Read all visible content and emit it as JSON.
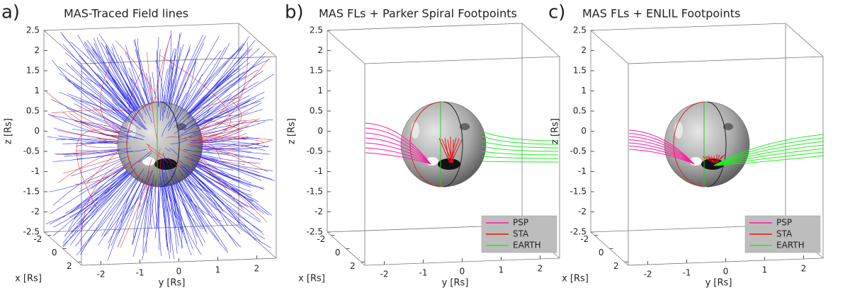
{
  "chart_data": [
    {
      "type": "field-lines",
      "panel_label": "a)",
      "title": "MAS-Traced Field lines",
      "zlabel": "z [Rs]",
      "xlabel": "x [Rs]",
      "ylabel": "y [Rs]",
      "xlim": [
        -2.5,
        2.5
      ],
      "ylim": [
        -2.5,
        2.5
      ],
      "zlim": [
        -2.5,
        2.5
      ],
      "xticks": [
        -2,
        0,
        2
      ],
      "yticks": [
        -2,
        -1,
        0,
        1,
        2
      ],
      "zticks": [
        2.5,
        2,
        1.5,
        1,
        0.5,
        0,
        -0.5,
        -1,
        -1.5,
        -2,
        -2.5
      ],
      "field_line_colors": [
        "#2424ee",
        "#ee2a2a"
      ]
    },
    {
      "type": "field-lines",
      "panel_label": "b)",
      "title": "MAS FLs + Parker Spiral Footpoints",
      "zlabel": "z [Rs]",
      "xlabel": "x [Rs]",
      "ylabel": "y [Rs]",
      "xlim": [
        -2.5,
        2.5
      ],
      "ylim": [
        -2.5,
        2.5
      ],
      "zlim": [
        -2.5,
        2.5
      ],
      "xticks": [
        -2,
        0,
        2
      ],
      "yticks": [
        -2,
        -1,
        0,
        1,
        2
      ],
      "zticks": [
        2.5,
        2,
        1.5,
        1,
        0.5,
        0,
        -0.5,
        -1,
        -1.5,
        -2,
        -2.5
      ],
      "series": [
        {
          "name": "PSP",
          "color": "#ff1aa3"
        },
        {
          "name": "STA",
          "color": "#ee1111"
        },
        {
          "name": "EARTH",
          "color": "#22ee22"
        }
      ]
    },
    {
      "type": "field-lines",
      "panel_label": "c)",
      "title": "MAS FLs + ENLIL Footpoints",
      "zlabel": "z [Rs]",
      "xlabel": "x [Rs]",
      "ylabel": "y [Rs]",
      "xlim": [
        -2.5,
        2.5
      ],
      "ylim": [
        -2.5,
        2.5
      ],
      "zlim": [
        -2.5,
        2.5
      ],
      "xticks": [
        -2,
        0,
        2
      ],
      "yticks": [
        -2,
        -1,
        0,
        1,
        2
      ],
      "zticks": [
        2.5,
        2,
        1.5,
        1,
        0.5,
        0,
        -0.5,
        -1,
        -1.5,
        -2,
        -2.5
      ],
      "series": [
        {
          "name": "PSP",
          "color": "#ff1aa3"
        },
        {
          "name": "STA",
          "color": "#ee1111"
        },
        {
          "name": "EARTH",
          "color": "#22ee22"
        }
      ]
    }
  ]
}
